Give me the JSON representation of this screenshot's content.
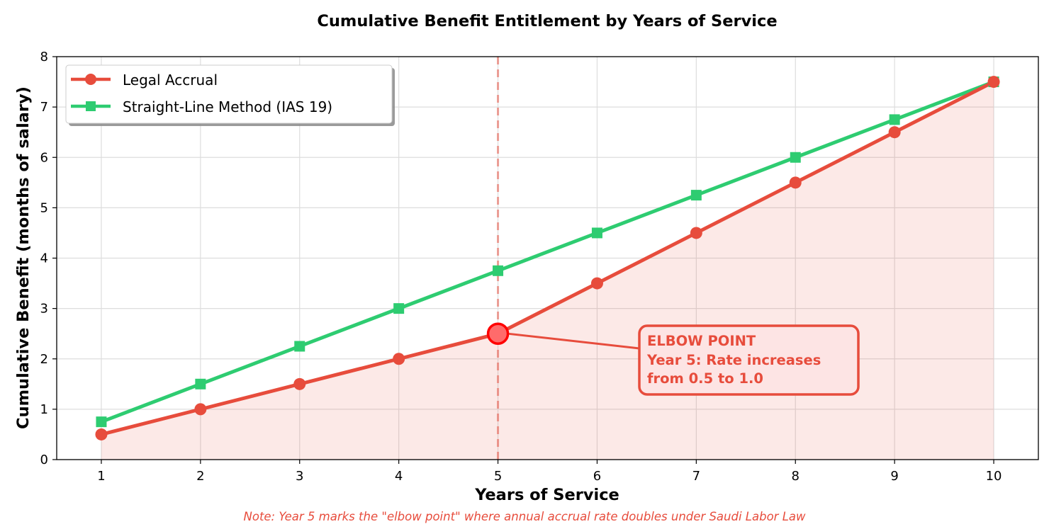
{
  "chart_data": {
    "type": "line",
    "title": "Cumulative Benefit Entitlement by Years of Service",
    "xlabel": "Years of Service",
    "ylabel": "Cumulative Benefit (months of salary)",
    "x": [
      1,
      2,
      3,
      4,
      5,
      6,
      7,
      8,
      9,
      10
    ],
    "xlim": [
      0.55,
      10.45
    ],
    "ylim": [
      0,
      8
    ],
    "xticks": [
      1,
      2,
      3,
      4,
      5,
      6,
      7,
      8,
      9,
      10
    ],
    "yticks": [
      0,
      1,
      2,
      3,
      4,
      5,
      6,
      7,
      8
    ],
    "grid": true,
    "legend_position": "top-left",
    "series": [
      {
        "name": "Legal Accrual",
        "color": "#e74c3c",
        "marker": "circle",
        "filled_area": true,
        "values": [
          0.5,
          1.0,
          1.5,
          2.0,
          2.5,
          3.5,
          4.5,
          5.5,
          6.5,
          7.5
        ]
      },
      {
        "name": "Straight-Line Method (IAS 19)",
        "color": "#2ecc71",
        "marker": "square",
        "values": [
          0.75,
          1.5,
          2.25,
          3.0,
          3.75,
          4.5,
          5.25,
          6.0,
          6.75,
          7.5
        ]
      }
    ],
    "vline": {
      "x": 5,
      "style": "dashed",
      "color": "#e74c3c"
    },
    "highlight_point": {
      "x": 5,
      "y": 2.5,
      "color": "#ff0000"
    },
    "annotation": {
      "lines": [
        "ELBOW POINT",
        "Year 5: Rate increases",
        "from 0.5 to 1.0"
      ],
      "target": {
        "x": 5,
        "y": 2.5
      },
      "text_anchor": {
        "x": 6.5,
        "y": 1.9
      },
      "color": "#e74c3c"
    },
    "footnote": "Note: Year 5 marks the \"elbow point\" where annual accrual rate doubles under Saudi Labor Law"
  }
}
